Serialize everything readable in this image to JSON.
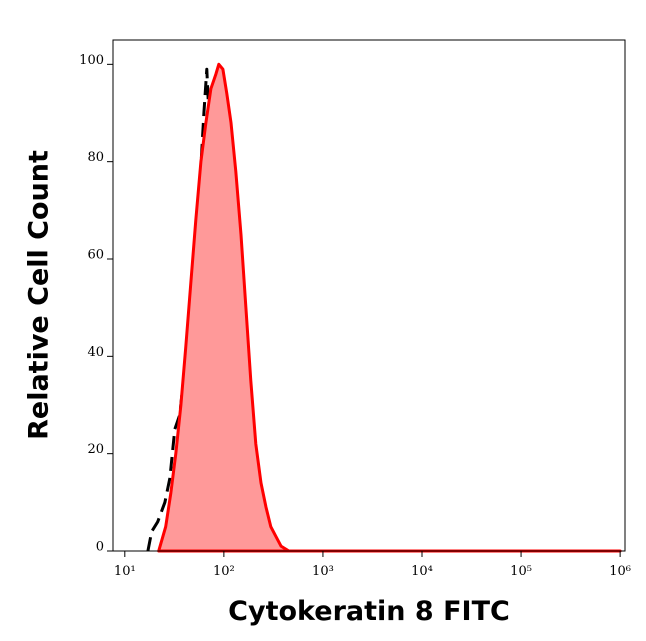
{
  "chart_data": {
    "type": "histogram-overlay",
    "xlabel": "Cytokeratin 8 FITC",
    "ylabel": "Relative Cell Count",
    "log_x": true,
    "xlim": [
      7.6,
      1120000
    ],
    "ylim": [
      0,
      105
    ],
    "xticks": [
      {
        "value": 10,
        "label": "10¹"
      },
      {
        "value": 100,
        "label": "10²"
      },
      {
        "value": 1000,
        "label": "10³"
      },
      {
        "value": 10000,
        "label": "10⁴"
      },
      {
        "value": 100000,
        "label": "10⁵"
      },
      {
        "value": 1000000,
        "label": "10⁶"
      }
    ],
    "yticks": [
      0,
      20,
      40,
      60,
      80,
      100
    ],
    "series": [
      {
        "color": "#000000",
        "dashed": true,
        "x": [
          17.1,
          18.7,
          21.5,
          25.4,
          28.5,
          32.0,
          35.9,
          40.4,
          45.4,
          50.9,
          57.2,
          62.8,
          67.3,
          72.2,
          77.4,
          84.9,
          91.2,
          100,
          110,
          120,
          132
        ],
        "values": [
          0,
          4,
          6,
          10,
          15,
          25,
          28,
          38,
          45,
          58,
          75,
          90,
          99,
          85,
          70,
          55,
          40,
          25,
          10,
          2,
          0
        ]
      },
      {
        "color": "#ff0000",
        "fill": "#ff9999",
        "dashed": false,
        "x": [
          22.0,
          25.9,
          29.2,
          32.7,
          36.8,
          41.3,
          46.4,
          52.1,
          58.6,
          65.8,
          73.9,
          83.0,
          88.9,
          97.7,
          107,
          118,
          132,
          149,
          167,
          187,
          210,
          237,
          266,
          298,
          335,
          377,
          453,
          61700,
          1000000
        ],
        "values": [
          0,
          5,
          12,
          20,
          30,
          42,
          55,
          68,
          80,
          88,
          95,
          98,
          100,
          99,
          94,
          88,
          78,
          65,
          50,
          35,
          22,
          14,
          9,
          5,
          3,
          1,
          0,
          0,
          0
        ]
      }
    ]
  }
}
